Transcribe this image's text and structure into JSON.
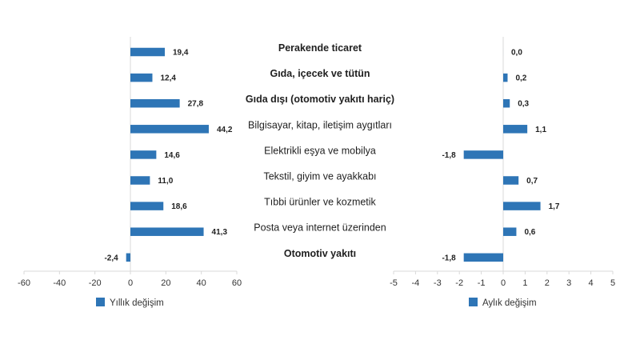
{
  "chart_data": [
    {
      "type": "bar",
      "orientation": "horizontal",
      "categories": [
        "Perakende ticaret",
        "Gıda, içecek ve tütün",
        "Gıda dışı (otomotiv yakıtı hariç)",
        "Bilgisayar, kitap, iletişim aygıtları",
        "Elektrikli eşya ve mobilya",
        "Tekstil, giyim ve ayakkabı",
        "Tıbbi ürünler ve kozmetik",
        "Posta veya internet üzerinden",
        "Otomotiv yakıtı"
      ],
      "bold_categories": [
        0,
        1,
        2,
        8
      ],
      "series": [
        {
          "name": "Yıllık değişim",
          "values": [
            19.4,
            12.4,
            27.8,
            44.2,
            14.6,
            11.0,
            18.6,
            41.3,
            -2.4
          ],
          "labels": [
            "19,4",
            "12,4",
            "27,8",
            "44,2",
            "14,6",
            "11,0",
            "18,6",
            "41,3",
            "-2,4"
          ],
          "color": "#2e75b6"
        }
      ],
      "xlim": [
        -60,
        60
      ],
      "xticks": [
        "-60",
        "-40",
        "-20",
        "0",
        "20",
        "40",
        "60"
      ],
      "xtick_values": [
        -60,
        -40,
        -20,
        0,
        20,
        40,
        60
      ],
      "grid": false,
      "legend": "bottom-left"
    },
    {
      "type": "bar",
      "orientation": "horizontal",
      "series": [
        {
          "name": "Aylık değişim",
          "values": [
            0.0,
            0.2,
            0.3,
            1.1,
            -1.8,
            0.7,
            1.7,
            0.6,
            -1.8
          ],
          "labels": [
            "0,0",
            "0,2",
            "0,3",
            "1,1",
            "-1,8",
            "0,7",
            "1,7",
            "0,6",
            "-1,8"
          ],
          "color": "#2e75b6"
        }
      ],
      "xlim": [
        -5,
        5
      ],
      "xticks": [
        "-5",
        "-4",
        "-3",
        "-2",
        "-1",
        "0",
        "1",
        "2",
        "3",
        "4",
        "5"
      ],
      "xtick_values": [
        -5,
        -4,
        -3,
        -2,
        -1,
        0,
        1,
        2,
        3,
        4,
        5
      ],
      "grid": false,
      "legend": "bottom-center"
    }
  ]
}
